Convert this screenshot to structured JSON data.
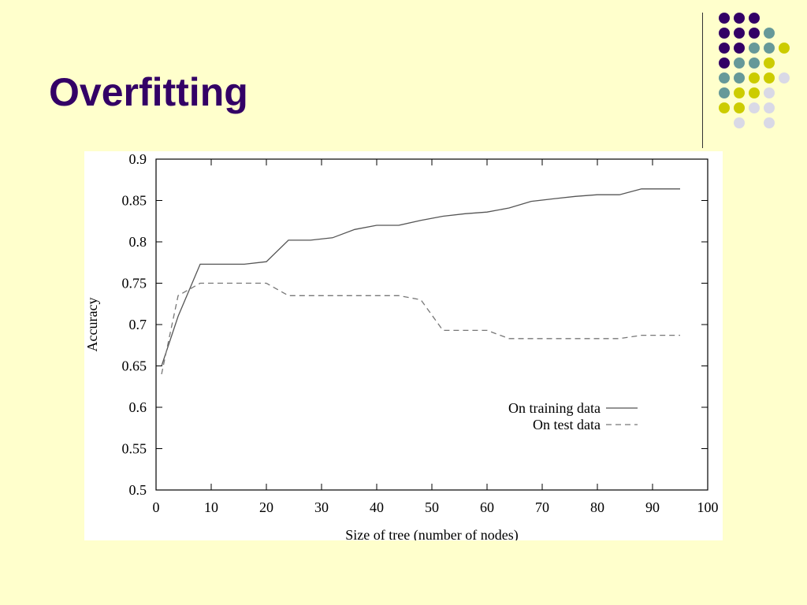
{
  "slide": {
    "title": "Overfitting"
  },
  "decoration": {
    "dot_colors": {
      "purple": "#330066",
      "teal": "#669999",
      "yellow": "#cccc00",
      "lavender": "#d9d9e6"
    },
    "dot_grid": [
      [
        "purple",
        "purple",
        "purple",
        "",
        "",
        ""
      ],
      [
        "purple",
        "purple",
        "purple",
        "teal",
        "",
        ""
      ],
      [
        "purple",
        "purple",
        "teal",
        "teal",
        "yellow",
        ""
      ],
      [
        "purple",
        "teal",
        "teal",
        "yellow",
        "",
        ""
      ],
      [
        "teal",
        "teal",
        "yellow",
        "yellow",
        "lavender",
        ""
      ],
      [
        "teal",
        "yellow",
        "yellow",
        "lavender",
        "",
        ""
      ],
      [
        "yellow",
        "yellow",
        "lavender",
        "lavender",
        "",
        ""
      ],
      [
        "",
        "lavender",
        "",
        "lavender",
        "",
        ""
      ]
    ]
  },
  "chart_data": {
    "type": "line",
    "title": "",
    "xlabel": "Size of tree (number of nodes)",
    "ylabel": "Accuracy",
    "xlim": [
      0,
      100
    ],
    "ylim": [
      0.5,
      0.9
    ],
    "xticks": [
      "0",
      "10",
      "20",
      "30",
      "40",
      "50",
      "60",
      "70",
      "80",
      "90",
      "100"
    ],
    "yticks": [
      "0.5",
      "0.55",
      "0.6",
      "0.65",
      "0.7",
      "0.75",
      "0.8",
      "0.85",
      "0.9"
    ],
    "grid": false,
    "legend_position": "bottom-right",
    "series": [
      {
        "name": "On training data",
        "style": "solid",
        "color": "#555555",
        "x": [
          1,
          4,
          8,
          12,
          16,
          20,
          24,
          28,
          32,
          36,
          40,
          44,
          48,
          52,
          56,
          60,
          64,
          68,
          72,
          76,
          80,
          84,
          88,
          92,
          95
        ],
        "y": [
          0.65,
          0.71,
          0.773,
          0.773,
          0.773,
          0.776,
          0.802,
          0.802,
          0.805,
          0.815,
          0.82,
          0.82,
          0.826,
          0.831,
          0.834,
          0.836,
          0.841,
          0.849,
          0.852,
          0.855,
          0.857,
          0.857,
          0.864,
          0.864,
          0.864
        ]
      },
      {
        "name": "On test data",
        "style": "dashed",
        "color": "#777777",
        "x": [
          1,
          4,
          8,
          12,
          16,
          20,
          24,
          28,
          32,
          36,
          40,
          44,
          48,
          52,
          56,
          60,
          64,
          68,
          72,
          76,
          80,
          84,
          88,
          92,
          95
        ],
        "y": [
          0.64,
          0.735,
          0.75,
          0.75,
          0.75,
          0.75,
          0.735,
          0.735,
          0.735,
          0.735,
          0.735,
          0.735,
          0.73,
          0.693,
          0.693,
          0.693,
          0.683,
          0.683,
          0.683,
          0.683,
          0.683,
          0.683,
          0.687,
          0.687,
          0.687
        ]
      }
    ]
  }
}
